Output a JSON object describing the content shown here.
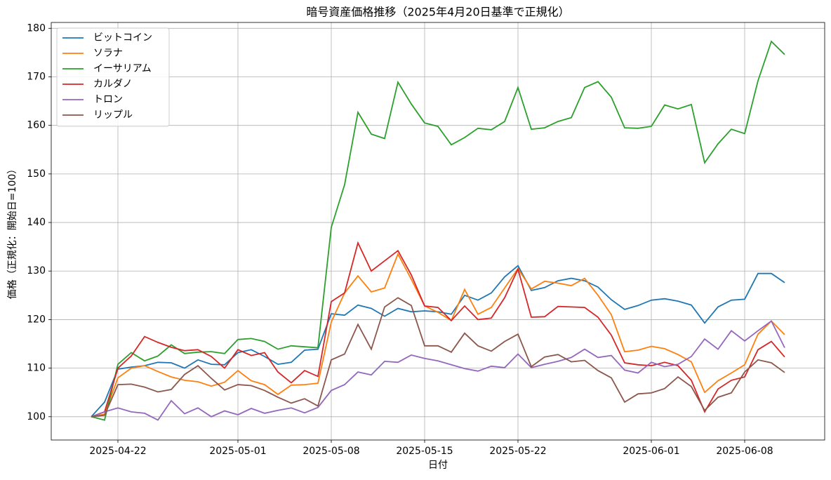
{
  "chart_data": {
    "type": "line",
    "title": "暗号資産価格推移（2025年4月20日基準で正規化）",
    "xlabel": "日付",
    "ylabel": "価格（正規化：開始日=100）",
    "x": [
      "2025-04-20",
      "2025-04-21",
      "2025-04-22",
      "2025-04-23",
      "2025-04-24",
      "2025-04-25",
      "2025-04-26",
      "2025-04-27",
      "2025-04-28",
      "2025-04-29",
      "2025-04-30",
      "2025-05-01",
      "2025-05-02",
      "2025-05-03",
      "2025-05-04",
      "2025-05-05",
      "2025-05-06",
      "2025-05-07",
      "2025-05-08",
      "2025-05-09",
      "2025-05-10",
      "2025-05-11",
      "2025-05-12",
      "2025-05-13",
      "2025-05-14",
      "2025-05-15",
      "2025-05-16",
      "2025-05-17",
      "2025-05-18",
      "2025-05-19",
      "2025-05-20",
      "2025-05-21",
      "2025-05-22",
      "2025-05-23",
      "2025-05-24",
      "2025-05-25",
      "2025-05-26",
      "2025-05-27",
      "2025-05-28",
      "2025-05-29",
      "2025-05-30",
      "2025-05-31",
      "2025-06-01",
      "2025-06-02",
      "2025-06-03",
      "2025-06-04",
      "2025-06-05",
      "2025-06-06",
      "2025-06-07",
      "2025-06-08",
      "2025-06-09",
      "2025-06-10",
      "2025-06-11"
    ],
    "series": [
      {
        "name": "ビットコイン",
        "color": "#1f77b4",
        "values": [
          100,
          103,
          109.8,
          110.2,
          110.5,
          111.2,
          111.1,
          110.0,
          111.7,
          110.8,
          110.7,
          113.2,
          113.8,
          112.4,
          110.8,
          111.2,
          113.7,
          113.9,
          121.2,
          120.9,
          123.0,
          122.3,
          120.7,
          122.3,
          121.6,
          121.8,
          121.6,
          121.1,
          125.0,
          124.0,
          125.5,
          128.8,
          131.1,
          126.0,
          126.6,
          128.0,
          128.5,
          128.0,
          126.7,
          124.1,
          122.1,
          122.9,
          124.0,
          124.3,
          123.8,
          123.0,
          119.3,
          122.6,
          124.0,
          124.2,
          129.5,
          129.5,
          127.6
        ]
      },
      {
        "name": "ソラナ",
        "color": "#ff7f0e",
        "values": [
          100,
          100.5,
          108,
          110,
          110.5,
          109.3,
          108.2,
          107.5,
          107.2,
          106.3,
          107.1,
          109.5,
          107.4,
          106.6,
          104.6,
          106.5,
          106.6,
          106.9,
          119.5,
          125.5,
          129.0,
          125.7,
          126.5,
          133.5,
          128.3,
          122.8,
          121.5,
          119.8,
          126.2,
          121.1,
          122.5,
          126.5,
          130.5,
          126.3,
          127.9,
          127.5,
          127.0,
          128.5,
          125.0,
          121.0,
          113.4,
          113.7,
          114.5,
          114.0,
          112.8,
          111.3,
          105.0,
          107.4,
          109.0,
          110.7,
          117.0,
          119.7,
          116.9
        ]
      },
      {
        "name": "イーサリアム",
        "color": "#2ca02c",
        "values": [
          100,
          99.3,
          110.8,
          113.2,
          111.5,
          112.5,
          114.8,
          113.0,
          113.3,
          113.4,
          113.0,
          115.9,
          116.1,
          115.5,
          113.9,
          114.6,
          114.4,
          114.2,
          139.0,
          147.8,
          162.7,
          158.2,
          157.3,
          168.9,
          164.4,
          160.5,
          159.8,
          156.0,
          157.5,
          159.4,
          159.1,
          160.8,
          167.8,
          159.2,
          159.5,
          160.8,
          161.6,
          167.8,
          169.0,
          165.8,
          159.5,
          159.4,
          159.8,
          164.2,
          163.4,
          164.3,
          152.3,
          156.2,
          159.2,
          158.3,
          169.2,
          177.3,
          174.6
        ]
      },
      {
        "name": "カルダノ",
        "color": "#d62728",
        "values": [
          100,
          101,
          110,
          112.5,
          116.5,
          115.3,
          114.3,
          113.6,
          113.8,
          112.4,
          110.0,
          113.8,
          112.6,
          113.2,
          109.2,
          107.0,
          109.5,
          108.3,
          123.7,
          125.5,
          135.8,
          130.0,
          132.1,
          134.2,
          129.2,
          122.8,
          122.5,
          119.8,
          122.8,
          120.0,
          120.3,
          124.5,
          130.4,
          120.5,
          120.6,
          122.7,
          122.6,
          122.5,
          120.5,
          116.8,
          111.1,
          110.7,
          110.5,
          111.2,
          110.5,
          107.5,
          101.0,
          105.7,
          107.5,
          108.2,
          113.8,
          115.5,
          112.3
        ]
      },
      {
        "name": "トロン",
        "color": "#9467bd",
        "values": [
          100,
          101,
          101.8,
          101.0,
          100.7,
          99.3,
          103.3,
          100.6,
          101.8,
          100.0,
          101.2,
          100.4,
          101.7,
          100.7,
          101.3,
          101.8,
          100.8,
          101.9,
          105.4,
          106.6,
          109.2,
          108.6,
          111.4,
          111.2,
          112.7,
          112.0,
          111.5,
          110.7,
          109.9,
          109.4,
          110.4,
          110.1,
          112.9,
          110.1,
          110.8,
          111.4,
          112.2,
          113.9,
          112.2,
          112.6,
          109.6,
          109.0,
          111.2,
          110.3,
          110.8,
          112.4,
          116.0,
          113.9,
          117.7,
          115.6,
          117.7,
          119.7,
          114.2
        ]
      },
      {
        "name": "リップル",
        "color": "#8c564b",
        "values": [
          100,
          100.3,
          106.6,
          106.7,
          106.1,
          105.1,
          105.6,
          108.7,
          110.5,
          107.9,
          105.5,
          106.6,
          106.4,
          105.4,
          104.0,
          102.8,
          103.7,
          102.2,
          111.7,
          112.9,
          119.0,
          113.9,
          122.6,
          124.5,
          122.9,
          114.6,
          114.6,
          113.3,
          117.2,
          114.6,
          113.5,
          115.5,
          117.0,
          110.3,
          112.3,
          112.8,
          111.3,
          111.6,
          109.5,
          108.0,
          103.0,
          104.7,
          104.9,
          105.8,
          108.2,
          106.2,
          101.3,
          104.0,
          104.9,
          109.2,
          111.7,
          111.1,
          109.1
        ]
      }
    ],
    "xlim": [
      "2025-04-17",
      "2025-06-14"
    ],
    "xticks": [
      "2025-04-22",
      "2025-05-01",
      "2025-05-08",
      "2025-05-15",
      "2025-05-22",
      "2025-06-01",
      "2025-06-08"
    ],
    "ylim": [
      95.2,
      181.2
    ],
    "yticks": [
      100,
      110,
      120,
      130,
      140,
      150,
      160,
      170,
      180
    ],
    "grid": true,
    "legend": "upper left"
  }
}
